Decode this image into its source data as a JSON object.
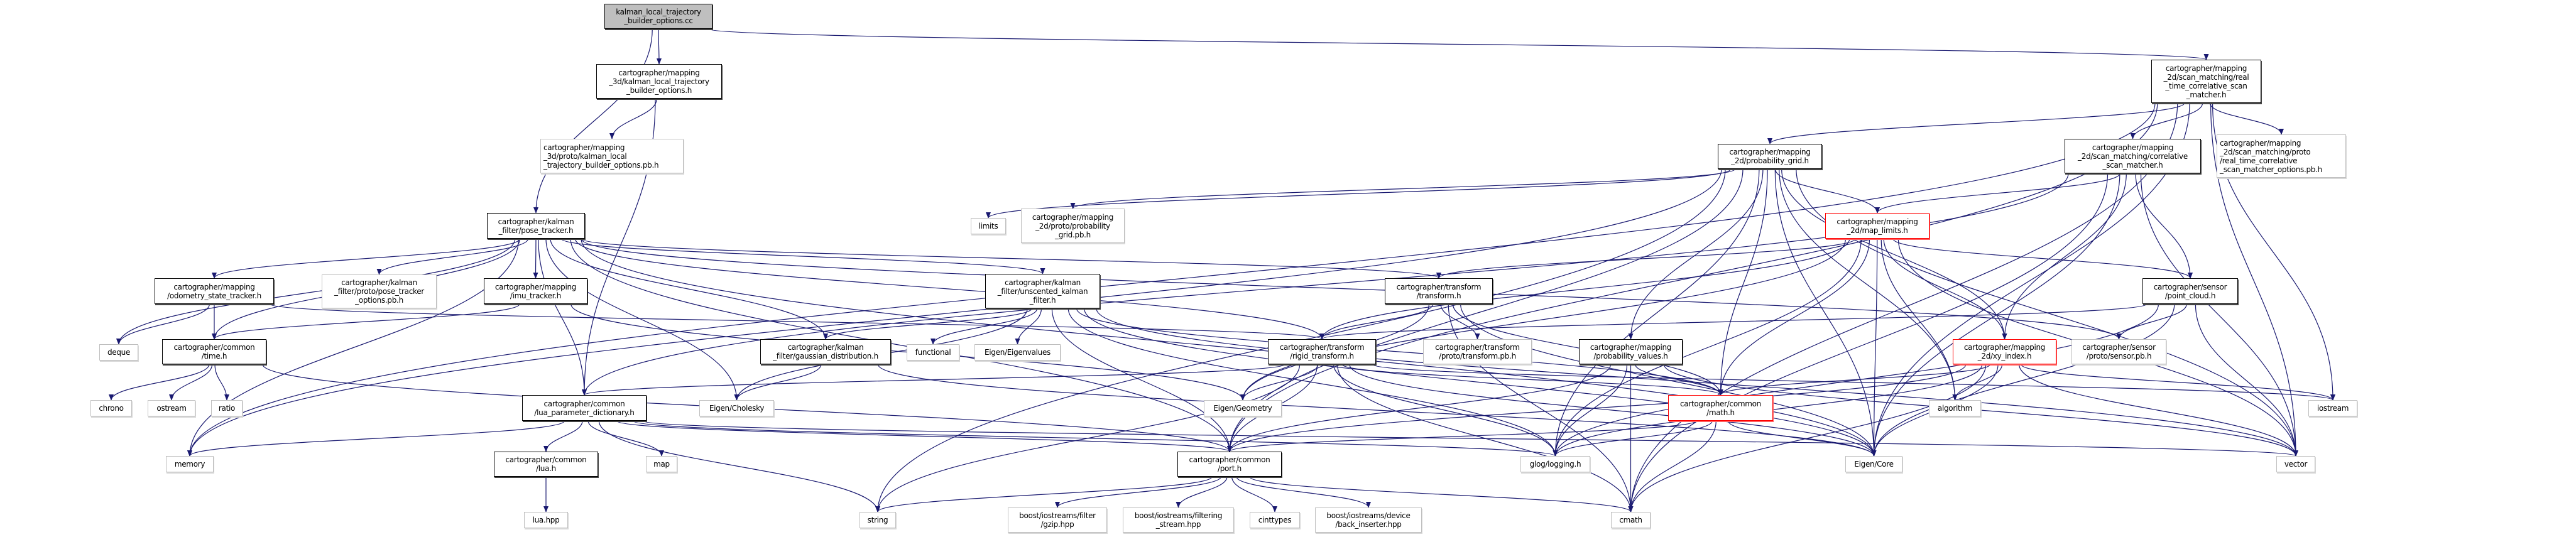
{
  "colors": {
    "edge": "#191970",
    "root_fill": "#bfbfbf",
    "external_border": "#bfbfbf",
    "truncated_border": "#ff0000",
    "node_border": "#000000"
  },
  "nodes": {
    "root": {
      "label": "kalman_local_trajectory\n_builder_options.cc"
    },
    "k3d_opts_h": {
      "label": "cartographer/mapping\n_3d/kalman_local_trajectory\n_builder_options.h"
    },
    "k3d_opts_pb": {
      "label": "cartographer/mapping\n_3d/proto/kalman_local\n_trajectory_builder_options.pb.h"
    },
    "pose_tracker": {
      "label": "cartographer/kalman\n_filter/pose_tracker.h"
    },
    "rt_csm": {
      "label": "cartographer/mapping\n_2d/scan_matching/real\n_time_correlative_scan\n_matcher.h"
    },
    "prob_grid": {
      "label": "cartographer/mapping\n_2d/probability_grid.h"
    },
    "csm": {
      "label": "cartographer/mapping\n_2d/scan_matching/correlative\n_scan_matcher.h"
    },
    "rt_csm_opts_pb": {
      "label": "cartographer/mapping\n_2d/scan_matching/proto\n/real_time_correlative\n_scan_matcher_options.pb.h"
    },
    "limits": {
      "label": "limits"
    },
    "prob_grid_pb": {
      "label": "cartographer/mapping\n_2d/proto/probability\n_grid.pb.h"
    },
    "map_limits": {
      "label": "cartographer/mapping\n_2d/map_limits.h"
    },
    "odometry": {
      "label": "cartographer/mapping\n/odometry_state_tracker.h"
    },
    "pose_tracker_opts_pb": {
      "label": "cartographer/kalman\n_filter/proto/pose_tracker\n_options.pb.h"
    },
    "imu_tracker": {
      "label": "cartographer/mapping\n/imu_tracker.h"
    },
    "ukf": {
      "label": "cartographer/kalman\n_filter/unscented_kalman\n_filter.h"
    },
    "transform": {
      "label": "cartographer/transform\n/transform.h"
    },
    "point_cloud": {
      "label": "cartographer/sensor\n/point_cloud.h"
    },
    "deque": {
      "label": "deque"
    },
    "time": {
      "label": "cartographer/common\n/time.h"
    },
    "gaussian": {
      "label": "cartographer/kalman\n_filter/gaussian_distribution.h"
    },
    "functional": {
      "label": "functional"
    },
    "eigenvalues": {
      "label": "Eigen/Eigenvalues"
    },
    "rigid_transform": {
      "label": "cartographer/transform\n/rigid_transform.h"
    },
    "transform_pb": {
      "label": "cartographer/transform\n/proto/transform.pb.h"
    },
    "prob_values": {
      "label": "cartographer/mapping\n/probability_values.h"
    },
    "xy_index": {
      "label": "cartographer/mapping\n_2d/xy_index.h"
    },
    "sensor_pb": {
      "label": "cartographer/sensor\n/proto/sensor.pb.h"
    },
    "chrono": {
      "label": "chrono"
    },
    "ostream": {
      "label": "ostream"
    },
    "ratio": {
      "label": "ratio"
    },
    "lua_dict": {
      "label": "cartographer/common\n/lua_parameter_dictionary.h"
    },
    "cholesky": {
      "label": "Eigen/Cholesky"
    },
    "geometry": {
      "label": "Eigen/Geometry"
    },
    "math": {
      "label": "cartographer/common\n/math.h"
    },
    "algorithm": {
      "label": "algorithm"
    },
    "iostream": {
      "label": "iostream"
    },
    "memory": {
      "label": "memory"
    },
    "lua": {
      "label": "cartographer/common\n/lua.h"
    },
    "map": {
      "label": "map"
    },
    "port": {
      "label": "cartographer/common\n/port.h"
    },
    "glog": {
      "label": "glog/logging.h"
    },
    "eigen_core": {
      "label": "Eigen/Core"
    },
    "vector": {
      "label": "vector"
    },
    "lua_hpp": {
      "label": "lua.hpp"
    },
    "string": {
      "label": "string"
    },
    "gzip": {
      "label": "boost/iostreams/filter\n/gzip.hpp"
    },
    "filtering_stream": {
      "label": "boost/iostreams/filtering\n_stream.hpp"
    },
    "cinttypes": {
      "label": "cinttypes"
    },
    "back_inserter": {
      "label": "boost/iostreams/device\n/back_inserter.hpp"
    },
    "cmath": {
      "label": "cmath"
    }
  },
  "edges": [
    [
      "root",
      "k3d_opts_h"
    ],
    [
      "root",
      "pose_tracker"
    ],
    [
      "root",
      "rt_csm"
    ],
    [
      "k3d_opts_h",
      "k3d_opts_pb"
    ],
    [
      "k3d_opts_h",
      "lua_dict"
    ],
    [
      "rt_csm",
      "prob_grid"
    ],
    [
      "rt_csm",
      "csm"
    ],
    [
      "rt_csm",
      "rt_csm_opts_pb"
    ],
    [
      "rt_csm",
      "memory"
    ],
    [
      "rt_csm",
      "eigen_core"
    ],
    [
      "rt_csm",
      "vector"
    ],
    [
      "rt_csm",
      "iostream"
    ],
    [
      "rt_csm",
      "cmath"
    ],
    [
      "rt_csm",
      "port"
    ],
    [
      "pose_tracker",
      "odometry"
    ],
    [
      "pose_tracker",
      "pose_tracker_opts_pb"
    ],
    [
      "pose_tracker",
      "imu_tracker"
    ],
    [
      "pose_tracker",
      "time"
    ],
    [
      "pose_tracker",
      "deque"
    ],
    [
      "pose_tracker",
      "memory"
    ],
    [
      "pose_tracker",
      "lua_dict"
    ],
    [
      "pose_tracker",
      "port"
    ],
    [
      "pose_tracker",
      "cholesky"
    ],
    [
      "pose_tracker",
      "gaussian"
    ],
    [
      "pose_tracker",
      "ukf"
    ],
    [
      "pose_tracker",
      "transform"
    ],
    [
      "pose_tracker",
      "rigid_transform"
    ],
    [
      "pose_tracker",
      "sensor_pb"
    ],
    [
      "pose_tracker",
      "eigen_core"
    ],
    [
      "prob_grid",
      "limits"
    ],
    [
      "prob_grid",
      "prob_grid_pb"
    ],
    [
      "prob_grid",
      "map_limits"
    ],
    [
      "prob_grid",
      "xy_index"
    ],
    [
      "prob_grid",
      "prob_values"
    ],
    [
      "prob_grid",
      "math"
    ],
    [
      "prob_grid",
      "port"
    ],
    [
      "prob_grid",
      "glog"
    ],
    [
      "prob_grid",
      "eigen_core"
    ],
    [
      "prob_grid",
      "algorithm"
    ],
    [
      "prob_grid",
      "vector"
    ],
    [
      "prob_grid",
      "memory"
    ],
    [
      "prob_grid",
      "string"
    ],
    [
      "csm",
      "map_limits"
    ],
    [
      "csm",
      "xy_index"
    ],
    [
      "csm",
      "point_cloud"
    ],
    [
      "csm",
      "lua_dict"
    ],
    [
      "csm",
      "eigen_core"
    ],
    [
      "csm",
      "vector"
    ],
    [
      "csm",
      "cmath"
    ],
    [
      "map_limits",
      "transform"
    ],
    [
      "map_limits",
      "rigid_transform"
    ],
    [
      "map_limits",
      "xy_index"
    ],
    [
      "map_limits",
      "point_cloud"
    ],
    [
      "map_limits",
      "math"
    ],
    [
      "map_limits",
      "glog"
    ],
    [
      "map_limits",
      "eigen_core"
    ],
    [
      "map_limits",
      "vector"
    ],
    [
      "map_limits",
      "geometry"
    ],
    [
      "map_limits",
      "algorithm"
    ],
    [
      "odometry",
      "deque"
    ],
    [
      "odometry",
      "time"
    ],
    [
      "odometry",
      "rigid_transform"
    ],
    [
      "imu_tracker",
      "time"
    ],
    [
      "imu_tracker",
      "geometry"
    ],
    [
      "time",
      "chrono"
    ],
    [
      "time",
      "ostream"
    ],
    [
      "time",
      "ratio"
    ],
    [
      "time",
      "port"
    ],
    [
      "gaussian",
      "cholesky"
    ],
    [
      "gaussian",
      "eigen_core"
    ],
    [
      "ukf",
      "gaussian"
    ],
    [
      "ukf",
      "functional"
    ],
    [
      "ukf",
      "eigenvalues"
    ],
    [
      "ukf",
      "cholesky"
    ],
    [
      "ukf",
      "port"
    ],
    [
      "ukf",
      "glog"
    ],
    [
      "ukf",
      "eigen_core"
    ],
    [
      "ukf",
      "math"
    ],
    [
      "ukf",
      "vector"
    ],
    [
      "transform",
      "rigid_transform"
    ],
    [
      "transform",
      "transform_pb"
    ],
    [
      "transform",
      "geometry"
    ],
    [
      "transform",
      "math"
    ],
    [
      "transform",
      "cmath"
    ],
    [
      "transform",
      "eigen_core"
    ],
    [
      "rigid_transform",
      "geometry"
    ],
    [
      "rigid_transform",
      "port"
    ],
    [
      "rigid_transform",
      "math"
    ],
    [
      "rigid_transform",
      "iostream"
    ],
    [
      "rigid_transform",
      "lua_dict"
    ],
    [
      "rigid_transform",
      "string"
    ],
    [
      "rigid_transform",
      "eigen_core"
    ],
    [
      "rigid_transform",
      "glog"
    ],
    [
      "rigid_transform",
      "cmath"
    ],
    [
      "prob_values",
      "port"
    ],
    [
      "prob_values",
      "math"
    ],
    [
      "prob_values",
      "glog"
    ],
    [
      "prob_values",
      "cmath"
    ],
    [
      "prob_values",
      "vector"
    ],
    [
      "math",
      "port"
    ],
    [
      "math",
      "eigen_core"
    ],
    [
      "math",
      "cmath"
    ],
    [
      "math",
      "glog"
    ],
    [
      "lua_dict",
      "memory"
    ],
    [
      "lua_dict",
      "lua"
    ],
    [
      "lua_dict",
      "map"
    ],
    [
      "lua_dict",
      "string"
    ],
    [
      "lua_dict",
      "port"
    ],
    [
      "lua_dict",
      "vector"
    ],
    [
      "lua_dict",
      "glog"
    ],
    [
      "lua",
      "lua_hpp"
    ],
    [
      "port",
      "gzip"
    ],
    [
      "port",
      "filtering_stream"
    ],
    [
      "port",
      "cinttypes"
    ],
    [
      "port",
      "back_inserter"
    ],
    [
      "port",
      "cmath"
    ],
    [
      "port",
      "string"
    ],
    [
      "point_cloud",
      "sensor_pb"
    ],
    [
      "point_cloud",
      "rigid_transform"
    ],
    [
      "point_cloud",
      "vector"
    ],
    [
      "point_cloud",
      "eigen_core"
    ],
    [
      "point_cloud",
      "glog"
    ],
    [
      "xy_index",
      "math"
    ],
    [
      "xy_index",
      "algorithm"
    ],
    [
      "xy_index",
      "iostream"
    ],
    [
      "xy_index",
      "eigen_core"
    ],
    [
      "xy_index",
      "port"
    ],
    [
      "xy_index",
      "glog"
    ],
    [
      "xy_index",
      "vector"
    ],
    [
      "xy_index",
      "cmath"
    ]
  ]
}
